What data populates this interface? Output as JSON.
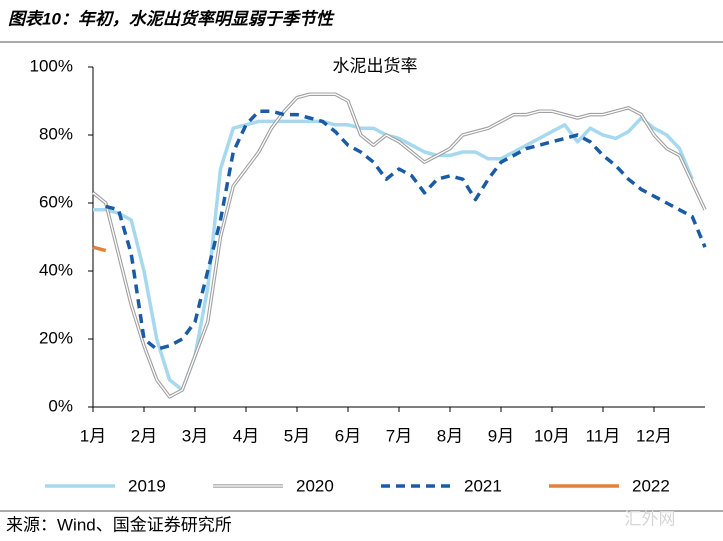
{
  "header": {
    "title": "图表10：年初，水泥出货率明显弱于季节性"
  },
  "chart_data": {
    "type": "line",
    "title": "水泥出货率",
    "x": [
      0,
      0.25,
      0.5,
      0.75,
      1,
      1.25,
      1.5,
      1.75,
      2,
      2.25,
      2.5,
      2.75,
      3,
      3.25,
      3.5,
      3.75,
      4,
      4.25,
      4.5,
      4.75,
      5,
      5.25,
      5.5,
      5.75,
      6,
      6.25,
      6.5,
      6.75,
      7,
      7.25,
      7.5,
      7.75,
      8,
      8.25,
      8.5,
      8.75,
      9,
      9.25,
      9.5,
      9.75,
      10,
      10.25,
      10.5,
      10.75,
      11,
      11.25,
      11.5,
      11.75,
      12
    ],
    "xlim": [
      0,
      12
    ],
    "xticks": [
      {
        "value": 0,
        "label": "1月"
      },
      {
        "value": 1,
        "label": "2月"
      },
      {
        "value": 2,
        "label": "3月"
      },
      {
        "value": 3,
        "label": "4月"
      },
      {
        "value": 4,
        "label": "5月"
      },
      {
        "value": 5,
        "label": "6月"
      },
      {
        "value": 6,
        "label": "7月"
      },
      {
        "value": 7,
        "label": "8月"
      },
      {
        "value": 8,
        "label": "9月"
      },
      {
        "value": 9,
        "label": "10月"
      },
      {
        "value": 10,
        "label": "11月"
      },
      {
        "value": 11,
        "label": "12月"
      }
    ],
    "ylim": [
      0,
      100
    ],
    "yticks": [
      {
        "value": 0,
        "label": "0%"
      },
      {
        "value": 20,
        "label": "20%"
      },
      {
        "value": 40,
        "label": "40%"
      },
      {
        "value": 60,
        "label": "60%"
      },
      {
        "value": 80,
        "label": "80%"
      },
      {
        "value": 100,
        "label": "100%"
      }
    ],
    "series": [
      {
        "name": "2019",
        "color": "#a6d9f0",
        "style": "solid",
        "values": [
          58,
          58,
          57,
          55,
          40,
          20,
          8,
          5,
          15,
          35,
          70,
          82,
          83,
          84,
          84,
          84,
          84,
          84,
          84,
          83,
          83,
          82,
          82,
          80,
          79,
          77,
          75,
          74,
          74,
          75,
          75,
          73,
          73,
          75,
          77,
          79,
          81,
          83,
          78,
          82,
          80,
          79,
          81,
          85,
          82,
          80,
          76,
          67,
          null
        ]
      },
      {
        "name": "2020",
        "color": "#a0a0a0",
        "style": "double",
        "values": [
          63,
          60,
          45,
          30,
          18,
          8,
          3,
          5,
          15,
          25,
          50,
          65,
          70,
          75,
          82,
          87,
          91,
          92,
          92,
          92,
          90,
          80,
          77,
          80,
          78,
          75,
          72,
          74,
          76,
          80,
          81,
          82,
          84,
          86,
          86,
          87,
          87,
          86,
          85,
          86,
          86,
          87,
          88,
          86,
          80,
          76,
          74,
          66,
          58
        ]
      },
      {
        "name": "2021",
        "color": "#1a5ba6",
        "style": "dashed",
        "values": [
          null,
          59,
          58,
          45,
          20,
          17,
          18,
          20,
          25,
          40,
          55,
          75,
          83,
          87,
          87,
          86,
          86,
          85,
          84,
          81,
          77,
          75,
          72,
          67,
          70,
          68,
          63,
          67,
          68,
          67,
          61,
          67,
          72,
          74,
          76,
          77,
          78,
          79,
          80,
          78,
          74,
          71,
          67,
          64,
          62,
          60,
          58,
          56,
          47
        ]
      },
      {
        "name": "2022",
        "color": "#e0823a",
        "style": "solid",
        "values": [
          47,
          46,
          null,
          null,
          null,
          null,
          null,
          null,
          null,
          null,
          null,
          null,
          null,
          null,
          null,
          null,
          null,
          null,
          null,
          null,
          null,
          null,
          null,
          null,
          null,
          null,
          null,
          null,
          null,
          null,
          null,
          null,
          null,
          null,
          null,
          null,
          null,
          null,
          null,
          null,
          null,
          null,
          null,
          null,
          null,
          null,
          null,
          null,
          null
        ]
      }
    ]
  },
  "source": "来源：Wind、国金证券研究所",
  "watermark": "汇外网"
}
